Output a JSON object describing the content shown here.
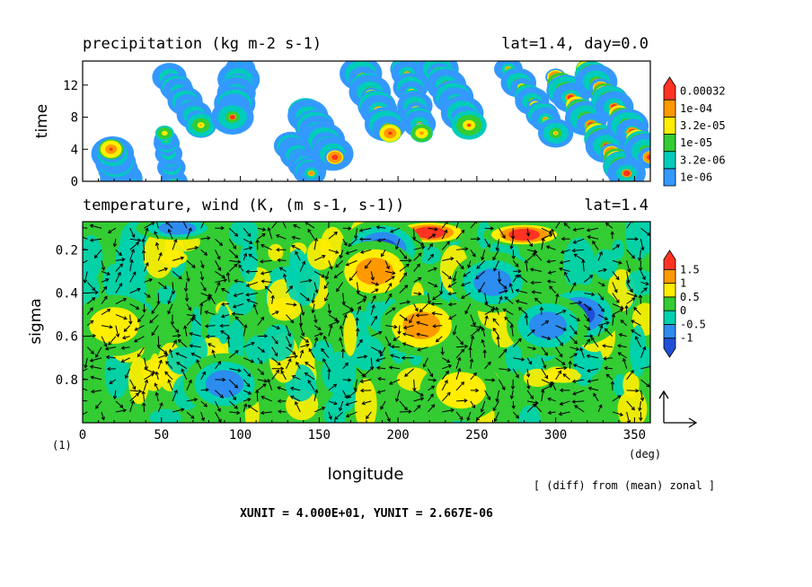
{
  "top_panel": {
    "title": "precipitation (kg m-2 s-1)",
    "info": "lat=1.4, day=0.0",
    "ylabel": "time",
    "yticks": [
      "0",
      "4",
      "8",
      "12"
    ],
    "colorbar": [
      "1e-06",
      "3.2e-06",
      "1e-05",
      "3.2e-05",
      "1e-04",
      "0.00032"
    ],
    "colorbar_colors": [
      "#3399ff",
      "#00ccbb",
      "#33cc33",
      "#ffee00",
      "#ff9900",
      "#ff3322"
    ]
  },
  "bottom_panel": {
    "title": "temperature, wind (K, (m s-1, s-1))",
    "info": "lat=1.4",
    "ylabel": "sigma",
    "yticks": [
      "0.2",
      "0.4",
      "0.6",
      "0.8"
    ],
    "xticks": [
      "0",
      "50",
      "100",
      "150",
      "200",
      "250",
      "300",
      "350"
    ],
    "xlabel": "longitude",
    "xunit": "(deg)",
    "corner_label": "(1)",
    "colorbar": [
      "-1",
      "-0.5",
      "0",
      "0.5",
      "1",
      "1.5"
    ],
    "colorbar_colors": [
      "#1f4fd6",
      "#2c8cf0",
      "#00d2b0",
      "#33cc33",
      "#ffee00",
      "#ff9900",
      "#ff3322"
    ],
    "note": "[ (diff) from (mean) zonal ]",
    "units_line": "XUNIT = 4.000E+01, YUNIT = 2.667E-06"
  },
  "chart_data": [
    {
      "type": "heatmap",
      "title": "precipitation (kg m-2 s-1)",
      "xlabel": "",
      "ylabel": "time",
      "xlim": [
        0,
        360
      ],
      "ylim": [
        0,
        15
      ],
      "levels": [
        1e-06,
        3.2e-06,
        1e-05,
        3.2e-05,
        0.0001,
        0.00032
      ],
      "streaks": [
        {
          "x0": 25,
          "t0": 0,
          "x1": 18,
          "t1": 4,
          "peak": 0.00032
        },
        {
          "x0": 58,
          "t0": 0,
          "x1": 52,
          "t1": 6,
          "peak": 3.2e-05
        },
        {
          "x0": 55,
          "t0": 13,
          "x1": 75,
          "t1": 7,
          "peak": 0.0001
        },
        {
          "x0": 100,
          "t0": 14,
          "x1": 95,
          "t1": 8,
          "peak": 0.00032
        },
        {
          "x0": 130,
          "t0": 5,
          "x1": 145,
          "t1": 1,
          "peak": 0.0001
        },
        {
          "x0": 140,
          "t0": 9,
          "x1": 160,
          "t1": 3,
          "peak": 0.00032
        },
        {
          "x0": 175,
          "t0": 14,
          "x1": 195,
          "t1": 6,
          "peak": 0.00032
        },
        {
          "x0": 205,
          "t0": 14,
          "x1": 215,
          "t1": 6,
          "peak": 0.0001
        },
        {
          "x0": 225,
          "t0": 14,
          "x1": 245,
          "t1": 7,
          "peak": 0.00032
        },
        {
          "x0": 270,
          "t0": 14,
          "x1": 300,
          "t1": 6,
          "peak": 0.0001
        },
        {
          "x0": 300,
          "t0": 13,
          "x1": 345,
          "t1": 1,
          "peak": 0.00032
        },
        {
          "x0": 320,
          "t0": 14,
          "x1": 360,
          "t1": 3,
          "peak": 0.00032
        }
      ]
    },
    {
      "type": "heatmap",
      "title": "temperature, wind (K, (m s-1, s-1))",
      "xlabel": "longitude",
      "ylabel": "sigma",
      "xlim": [
        0,
        360
      ],
      "ylim": [
        1.0,
        0.07
      ],
      "levels": [
        -1,
        -0.5,
        0,
        0.5,
        1,
        1.5
      ],
      "anomalies": [
        {
          "lon": 220,
          "sigma": 0.12,
          "value": 1.6
        },
        {
          "lon": 280,
          "sigma": 0.13,
          "value": 1.6
        },
        {
          "lon": 190,
          "sigma": 0.2,
          "value": -1.2
        },
        {
          "lon": 60,
          "sigma": 0.1,
          "value": -0.7
        },
        {
          "lon": 315,
          "sigma": 0.5,
          "value": -1.1
        },
        {
          "lon": 295,
          "sigma": 0.55,
          "value": -1.0
        },
        {
          "lon": 215,
          "sigma": 0.55,
          "value": 1.0
        },
        {
          "lon": 185,
          "sigma": 0.3,
          "value": 1.0
        },
        {
          "lon": 20,
          "sigma": 0.55,
          "value": 0.7
        },
        {
          "lon": 90,
          "sigma": 0.82,
          "value": -0.7
        },
        {
          "lon": 260,
          "sigma": 0.35,
          "value": -0.7
        },
        {
          "lon": 240,
          "sigma": 0.85,
          "value": 0.6
        }
      ],
      "wind_vectors": "arrows overlaid at regular lon/sigma grid",
      "reference_vector": {
        "x_unit": "4.000E+01",
        "y_unit": "2.667E-06"
      }
    }
  ]
}
